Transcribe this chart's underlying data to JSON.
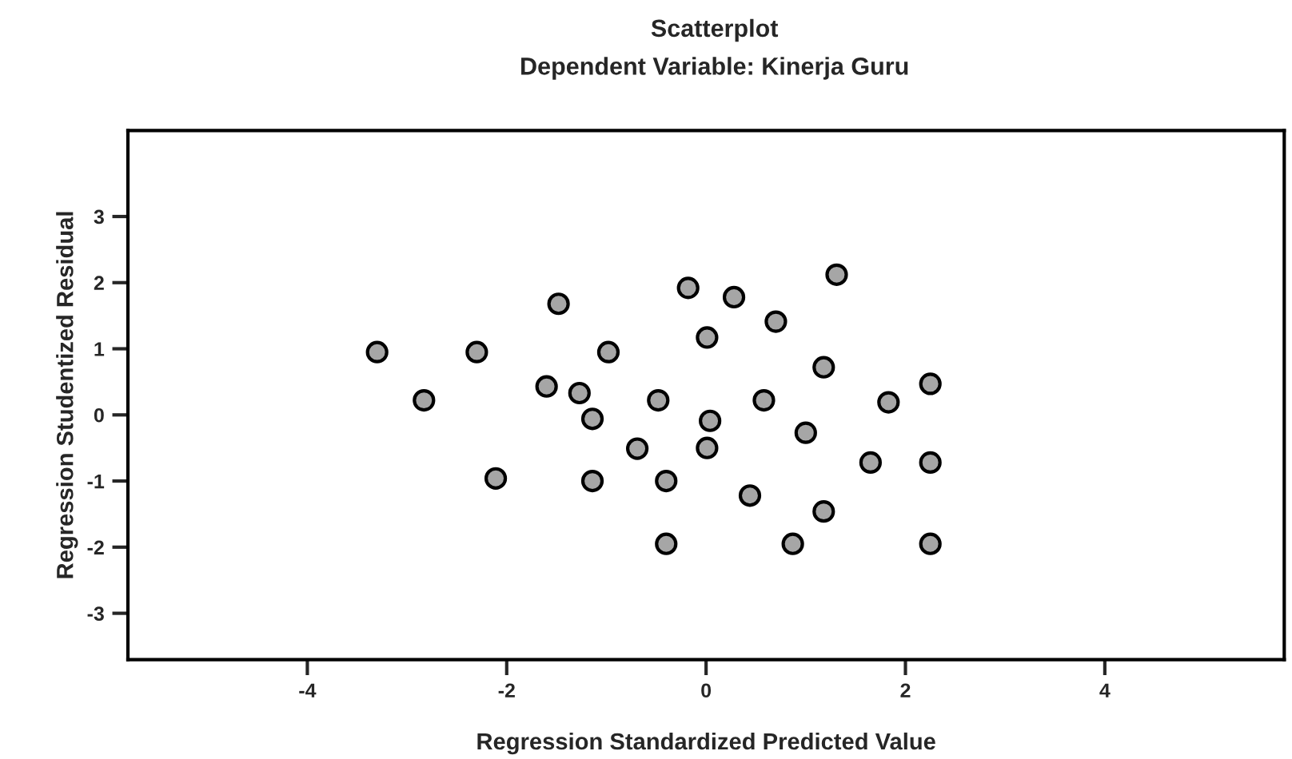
{
  "chart_data": {
    "type": "scatter",
    "title": "Scatterplot",
    "subtitle": "Dependent Variable: Kinerja Guru",
    "xlabel": "Regression Standardized Predicted Value",
    "ylabel": "Regression Studentized Residual",
    "x": [
      -3.3,
      -2.83,
      -2.3,
      -2.11,
      -1.48,
      -1.6,
      -1.27,
      -0.98,
      -1.14,
      -0.69,
      -1.14,
      -0.18,
      0.28,
      0.7,
      1.31,
      0.01,
      1.18,
      2.25,
      -0.48,
      0.58,
      1.83,
      0.04,
      1.0,
      0.01,
      1.65,
      2.25,
      -0.4,
      0.44,
      1.18,
      -0.4,
      0.87,
      2.25
    ],
    "series": [
      {
        "color": "#a6a6a6",
        "values": [
          0.95,
          0.22,
          0.95,
          -0.96,
          1.68,
          0.43,
          0.33,
          0.95,
          -0.06,
          -0.51,
          -1.0,
          1.92,
          1.78,
          1.41,
          2.12,
          1.17,
          0.72,
          0.47,
          0.22,
          0.22,
          0.19,
          -0.09,
          -0.27,
          -0.5,
          -0.72,
          -0.72,
          -1.0,
          -1.22,
          -1.46,
          -1.95,
          -1.95,
          -1.95
        ]
      }
    ],
    "xlim": [
      -5.8,
      5.8
    ],
    "ylim": [
      -3.7,
      4.3
    ],
    "xticks": [
      -4,
      -2,
      0,
      2,
      4
    ],
    "yticks": [
      -3,
      -2,
      -1,
      0,
      1,
      2,
      3
    ],
    "marker": "circle",
    "grid": false
  }
}
